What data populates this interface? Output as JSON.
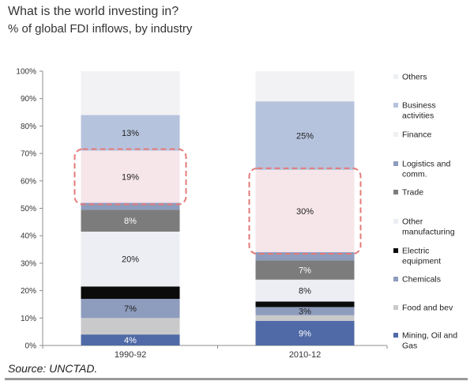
{
  "title": "What is the world investing in?",
  "subtitle": "% of global FDI inflows, by industry",
  "source": "Source: UNCTAD.",
  "chart_data": {
    "type": "bar",
    "stacked": true,
    "categories": [
      "1990-92",
      "2010-12"
    ],
    "ylim": [
      0,
      100
    ],
    "yticks": [
      "0%",
      "10%",
      "20%",
      "30%",
      "40%",
      "50%",
      "60%",
      "70%",
      "80%",
      "90%",
      "100%"
    ],
    "grid": false,
    "legend_position": "right",
    "series": [
      {
        "name": "Mining, Oil and Gas",
        "values": [
          4,
          9
        ],
        "color": "#4f6aa6",
        "labels": [
          "4%",
          "9%"
        ],
        "label_color": "#ffffff"
      },
      {
        "name": "Food and bev",
        "values": [
          6,
          2
        ],
        "color": "#c9c9cb",
        "labels": [
          "",
          ""
        ],
        "label_color": "#333333"
      },
      {
        "name": "Chemicals",
        "values": [
          7,
          3
        ],
        "color": "#8e9cbd",
        "labels": [
          "7%",
          "3%"
        ],
        "label_color": "#222222"
      },
      {
        "name": "Electric equipment",
        "values": [
          4.5,
          2
        ],
        "color": "#0b0b0b",
        "labels": [
          "",
          ""
        ],
        "label_color": "#ffffff"
      },
      {
        "name": "Other manufacturing",
        "values": [
          20,
          8
        ],
        "color": "#eceef4",
        "labels": [
          "20%",
          "8%"
        ],
        "label_color": "#222222"
      },
      {
        "name": "Trade",
        "values": [
          8,
          7
        ],
        "color": "#7c7c7c",
        "labels": [
          "8%",
          "7%"
        ],
        "label_color": "#ffffff"
      },
      {
        "name": "Logistics and comm.",
        "values": [
          2.5,
          3
        ],
        "color": "#8e9dbe",
        "labels": [
          "",
          ""
        ],
        "label_color": "#222222"
      },
      {
        "name": "Finance",
        "values": [
          19,
          30
        ],
        "color": "#f6e6ea",
        "labels": [
          "19%",
          "30%"
        ],
        "label_color": "#222222"
      },
      {
        "name": "Business activities",
        "values": [
          13,
          25
        ],
        "color": "#b6c3dd",
        "labels": [
          "13%",
          "25%"
        ],
        "label_color": "#222222"
      },
      {
        "name": "Others",
        "values": [
          16,
          11
        ],
        "color": "#f2f2f4",
        "labels": [
          "",
          ""
        ],
        "label_color": "#222222"
      }
    ],
    "legend": [
      {
        "lines": [
          "Others"
        ],
        "color": "#eeeff2"
      },
      {
        "lines": [
          "Business",
          "activities"
        ],
        "color": "#b6c3dd"
      },
      {
        "lines": [
          "Finance"
        ],
        "color": "#f0f0f2"
      },
      {
        "lines": [
          "Logistics and",
          "comm."
        ],
        "color": "#8e9dbe"
      },
      {
        "lines": [
          "Trade"
        ],
        "color": "#7c7c7c"
      },
      {
        "lines": [
          "Other",
          "manufacturing"
        ],
        "color": "#eceef4"
      },
      {
        "lines": [
          "Electric",
          "equipment"
        ],
        "color": "#0b0b0b"
      },
      {
        "lines": [
          "Chemicals"
        ],
        "color": "#8e9cbd"
      },
      {
        "lines": [
          "Food and bev"
        ],
        "color": "#c9c9cb"
      },
      {
        "lines": [
          "Mining, Oil and",
          "Gas"
        ],
        "color": "#4f6aa6"
      }
    ],
    "highlight_series": "Finance",
    "highlight_color": "#e57a7a"
  }
}
